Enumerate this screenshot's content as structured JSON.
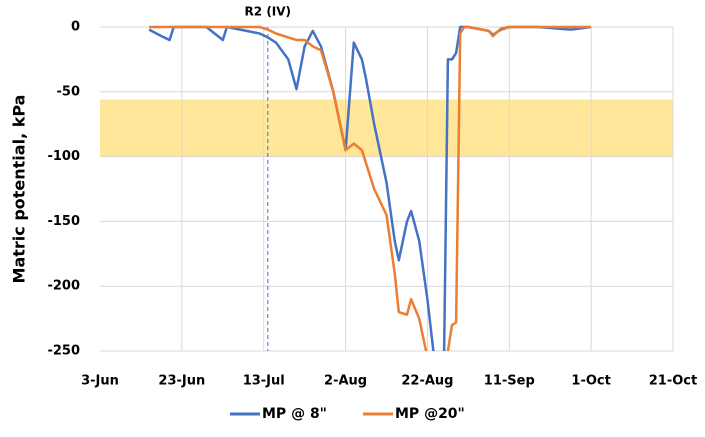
{
  "chart_data": {
    "type": "line",
    "y_label": "Matric potential, kPa",
    "x": [
      "15-Jun",
      "18-Jun",
      "20-Jun",
      "21-Jun",
      "29-Jun",
      "1-Jul",
      "3-Jul",
      "4-Jul",
      "12-Jul",
      "14-Jul",
      "16-Jul",
      "19-Jul",
      "21-Jul",
      "23-Jul",
      "25-Jul",
      "27-Jul",
      "30-Jul",
      "2-Aug",
      "4-Aug",
      "6-Aug",
      "7-Aug",
      "9-Aug",
      "12-Aug",
      "14-Aug",
      "15-Aug",
      "17-Aug",
      "18-Aug",
      "20-Aug",
      "22-Aug",
      "24-Aug",
      "26-Aug",
      "27-Aug",
      "28-Aug",
      "29-Aug",
      "30-Aug",
      "31-Aug",
      "1-Sep",
      "6-Sep",
      "7-Sep",
      "9-Sep",
      "11-Sep",
      "18-Sep",
      "26-Sep",
      "1-Oct"
    ],
    "series": [
      {
        "name": "MP @ 8\"",
        "color": "#4472c4",
        "values": [
          -2,
          -7,
          -10,
          0,
          0,
          -5,
          -10,
          0,
          -5,
          -8,
          -12,
          -25,
          -48,
          -15,
          -3,
          -15,
          -50,
          -95,
          -12,
          -25,
          -40,
          -75,
          -120,
          -165,
          -180,
          -150,
          -142,
          -165,
          -210,
          -265,
          -270,
          -25,
          -25,
          -20,
          0,
          0,
          0,
          -3,
          -6,
          -2,
          0,
          0,
          -2,
          0
        ]
      },
      {
        "name": "MP @20\"",
        "color": "#ed7d31",
        "values": [
          0,
          0,
          0,
          0,
          0,
          0,
          0,
          0,
          0,
          -2,
          -5,
          -8,
          -10,
          -10,
          -15,
          -18,
          -50,
          -95,
          -90,
          -95,
          -105,
          -125,
          -145,
          -190,
          -220,
          -222,
          -210,
          -225,
          -255,
          -270,
          -265,
          -250,
          -230,
          -228,
          -5,
          0,
          0,
          -3,
          -7,
          -1,
          0,
          0,
          0,
          0
        ]
      }
    ],
    "xlim": [
      "3-Jun",
      "21-Oct"
    ],
    "xticks": [
      "3-Jun",
      "23-Jun",
      "13-Jul",
      "2-Aug",
      "22-Aug",
      "11-Sep",
      "1-Oct",
      "21-Oct"
    ],
    "ylim": [
      -250,
      0
    ],
    "yticks": [
      0,
      -50,
      -100,
      -150,
      -200,
      -250
    ],
    "grid": true,
    "band": [
      -100,
      -56
    ],
    "band_color": "#ffe699",
    "annotations": [
      {
        "text": "R2 (IV)",
        "x": "14-Jul"
      }
    ],
    "legend": "bottom"
  }
}
